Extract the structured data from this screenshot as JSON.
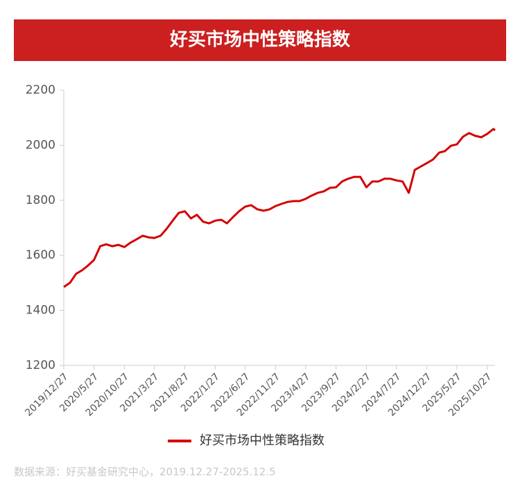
{
  "chart_data": {
    "type": "line",
    "title": "好买市场中性策略指数",
    "source": "数据来源：好买基金研究中心，2019.12.27-2025.12.5",
    "x": [
      "2019/12/27",
      "2020/1/27",
      "2020/2/27",
      "2020/3/27",
      "2020/4/27",
      "2020/5/27",
      "2020/6/27",
      "2020/7/27",
      "2020/8/27",
      "2020/9/27",
      "2020/10/27",
      "2020/11/27",
      "2020/12/27",
      "2021/1/27",
      "2021/2/27",
      "2021/3/27",
      "2021/4/27",
      "2021/5/27",
      "2021/6/27",
      "2021/7/27",
      "2021/8/27",
      "2021/9/27",
      "2021/10/27",
      "2021/11/27",
      "2021/12/27",
      "2022/1/27",
      "2022/2/27",
      "2022/3/27",
      "2022/4/27",
      "2022/5/27",
      "2022/6/27",
      "2022/7/27",
      "2022/8/27",
      "2022/9/27",
      "2022/10/27",
      "2022/11/27",
      "2022/12/27",
      "2023/1/27",
      "2023/2/27",
      "2023/3/27",
      "2023/4/27",
      "2023/5/27",
      "2023/6/27",
      "2023/7/27",
      "2023/8/27",
      "2023/9/27",
      "2023/10/27",
      "2023/11/27",
      "2023/12/27",
      "2024/1/27",
      "2024/2/27",
      "2024/3/27",
      "2024/4/27",
      "2024/5/27",
      "2024/6/27",
      "2024/7/27",
      "2024/8/27",
      "2024/9/27",
      "2024/10/27",
      "2024/11/27",
      "2024/12/27",
      "2025/1/27",
      "2025/2/27",
      "2025/3/27",
      "2025/4/27",
      "2025/5/27",
      "2025/6/27",
      "2025/7/27",
      "2025/8/27",
      "2025/9/27",
      "2025/10/27",
      "2025/11/27",
      "2025/12/5"
    ],
    "series": [
      {
        "name": "好买市场中性策略指数",
        "color": "#d40000",
        "values": [
          1485,
          1500,
          1533,
          1545,
          1563,
          1583,
          1633,
          1640,
          1633,
          1638,
          1630,
          1646,
          1658,
          1671,
          1665,
          1663,
          1671,
          1696,
          1726,
          1754,
          1760,
          1734,
          1747,
          1722,
          1716,
          1726,
          1729,
          1716,
          1739,
          1760,
          1777,
          1782,
          1767,
          1762,
          1767,
          1779,
          1787,
          1794,
          1797,
          1797,
          1805,
          1817,
          1827,
          1832,
          1845,
          1847,
          1868,
          1878,
          1885,
          1885,
          1847,
          1868,
          1868,
          1878,
          1878,
          1872,
          1868,
          1827,
          1910,
          1923,
          1935,
          1948,
          1973,
          1978,
          1998,
          2003,
          2031,
          2044,
          2034,
          2029,
          2041,
          2059,
          2054
        ]
      }
    ],
    "xlim": [
      "2019/12/27",
      "2025/12/5"
    ],
    "xticks": [
      "2019/12/27",
      "2020/5/27",
      "2020/10/27",
      "2021/3/27",
      "2021/8/27",
      "2022/1/27",
      "2022/6/27",
      "2022/11/27",
      "2023/4/27",
      "2023/9/27",
      "2024/2/27",
      "2024/7/27",
      "2024/12/27",
      "2025/5/27",
      "2025/10/27"
    ],
    "ylim": [
      1200,
      2200
    ],
    "yticks": [
      1200,
      1400,
      1600,
      1800,
      2000,
      2200
    ],
    "grid": false
  }
}
